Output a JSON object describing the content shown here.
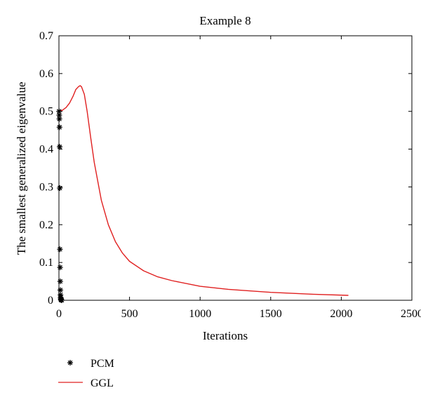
{
  "chart_data": {
    "type": "line",
    "title": "Example 8",
    "xlabel": "Iterations",
    "ylabel": "The smallest generalized eigenvalue",
    "xlim": [
      0,
      2500
    ],
    "ylim": [
      0,
      0.7
    ],
    "xticks": [
      0,
      500,
      1000,
      1500,
      2000,
      2500
    ],
    "yticks": [
      0,
      0.1,
      0.2,
      0.3,
      0.4,
      0.5,
      0.6,
      0.7
    ],
    "grid": false,
    "legend_position": "bottom-left, below plot",
    "series": [
      {
        "name": "PCM",
        "style": "markers",
        "marker": "asterisk",
        "color": "#000000",
        "x": [
          1,
          2,
          3,
          4,
          5,
          6,
          7,
          8,
          9,
          10,
          11,
          12,
          13,
          14,
          15,
          16,
          18,
          20
        ],
        "y": [
          0.5,
          0.49,
          0.48,
          0.458,
          0.406,
          0.297,
          0.135,
          0.087,
          0.05,
          0.027,
          0.014,
          0.008,
          0.004,
          0.002,
          0.001,
          0.0008,
          0.0005,
          0.0003
        ]
      },
      {
        "name": "GGL",
        "style": "line",
        "color": "#e02020",
        "x": [
          0,
          25,
          50,
          75,
          100,
          120,
          140,
          150,
          160,
          180,
          200,
          225,
          250,
          300,
          350,
          400,
          450,
          500,
          600,
          700,
          800,
          1000,
          1200,
          1500,
          1800,
          2050
        ],
        "y": [
          0.5,
          0.503,
          0.51,
          0.522,
          0.54,
          0.558,
          0.566,
          0.568,
          0.565,
          0.545,
          0.5,
          0.43,
          0.365,
          0.265,
          0.2,
          0.155,
          0.125,
          0.103,
          0.078,
          0.062,
          0.052,
          0.037,
          0.029,
          0.021,
          0.016,
          0.013
        ]
      }
    ]
  }
}
